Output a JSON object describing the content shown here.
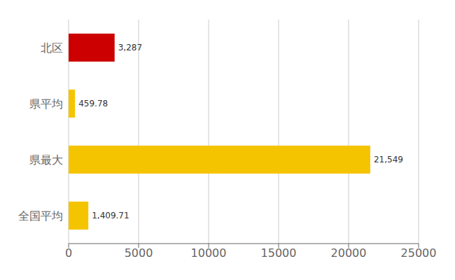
{
  "chart_data": {
    "type": "bar",
    "orientation": "horizontal",
    "categories": [
      "北区",
      "県平均",
      "県最大",
      "全国平均"
    ],
    "values": [
      3287,
      459.78,
      21549,
      1409.71
    ],
    "value_labels": [
      "3,287",
      "459.78",
      "21,549",
      "1,409.71"
    ],
    "data_labels": true,
    "colors": [
      "#cc0000",
      "#f5c400",
      "#f5c400",
      "#f5c400"
    ],
    "xlim": [
      0,
      25000
    ],
    "xticks": [
      0,
      5000,
      10000,
      15000,
      20000,
      25000
    ],
    "grid": true
  }
}
